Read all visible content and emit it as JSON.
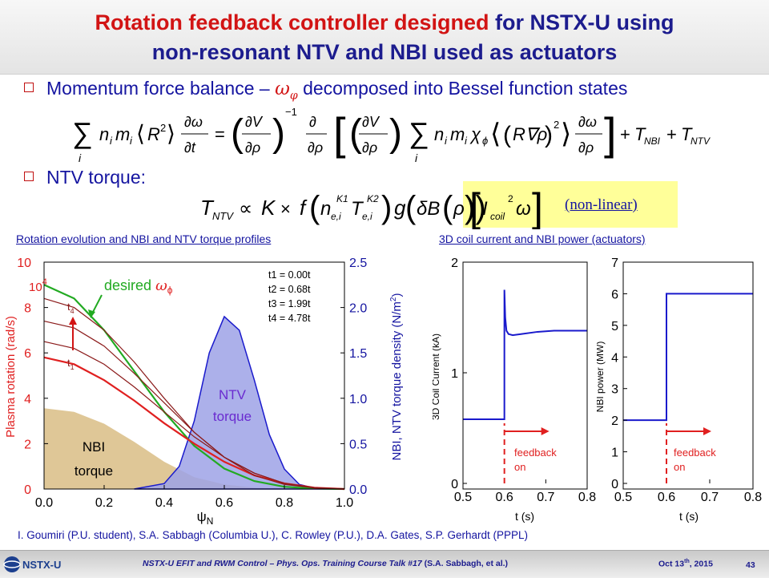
{
  "slide": {
    "title_red": "Rotation feedback controller designed",
    "title_blue": "for NSTX-U using",
    "title_line2": "non-resonant NTV and NBI used as actuators",
    "bullet1_pre": "Momentum force balance –",
    "bullet1_post": "decomposed into Bessel function states",
    "bullet2": "NTV torque:",
    "nonlinear": "(non-linear)",
    "left_section_title": "Rotation evolution and NBI and NTV torque profiles",
    "right_section_title": "3D coil current and NBI power (actuators)",
    "authors": "I. Goumiri (P.U. student), S.A. Sabbagh (Columbia U.), C. Rowley (P.U.), D.A. Gates, S.P. Gerhardt (PPPL)",
    "footer_talk": "NSTX-U EFIT and RWM Control – Phys. Ops. Training Course Talk #17",
    "footer_authors": "(S.A. Sabbagh, et al.)",
    "footer_date": "Oct 13",
    "footer_date_sup": "th",
    "footer_year": ", 2015",
    "page_number": "43",
    "logo_text": "NSTX-U"
  },
  "chart_data": [
    {
      "type": "line",
      "xlabel": "ψN",
      "ylabel": "Plasma rotation (rad/s)",
      "ylabel_scale": "10^4",
      "y2label": "NBI, NTV torque density (N/m^2)",
      "xlim": [
        0.0,
        1.0
      ],
      "ylim": [
        0,
        10
      ],
      "y2lim": [
        0.0,
        2.5
      ],
      "x_ticks": [
        "0.0",
        "0.2",
        "0.4",
        "0.6",
        "0.8",
        "1.0"
      ],
      "y_ticks": [
        "0",
        "2",
        "4",
        "6",
        "8",
        "10"
      ],
      "y2_ticks": [
        "0.0",
        "0.5",
        "1.0",
        "1.5",
        "2.0",
        "2.5"
      ],
      "annotations": {
        "desired": "desired",
        "t1": "t1",
        "t4": "t4",
        "ntv_label_1": "NTV",
        "ntv_label_2": "torque",
        "nbi_label_1": "NBI",
        "nbi_label_2": "torque"
      },
      "time_legend": [
        "t1 = 0.00t",
        "t2 = 0.68t",
        "t3 = 1.99t",
        "t4 = 4.78t"
      ],
      "series": [
        {
          "name": "desired",
          "color": "#22aa22",
          "x": [
            0,
            0.1,
            0.2,
            0.3,
            0.4,
            0.5,
            0.6,
            0.7,
            0.8,
            0.9,
            1.0
          ],
          "values": [
            9.0,
            8.4,
            7.0,
            5.2,
            3.4,
            1.9,
            0.9,
            0.35,
            0.1,
            0.02,
            0
          ]
        },
        {
          "name": "t1",
          "color": "#e02020",
          "x": [
            0,
            0.1,
            0.2,
            0.3,
            0.4,
            0.5,
            0.6,
            0.7,
            0.8,
            0.9,
            1.0
          ],
          "values": [
            5.8,
            5.5,
            4.8,
            3.9,
            2.9,
            2.0,
            1.2,
            0.6,
            0.25,
            0.06,
            0
          ]
        },
        {
          "name": "t2",
          "color": "#8b1a1a",
          "x": [
            0,
            0.1,
            0.2,
            0.3,
            0.4,
            0.5,
            0.6,
            0.7,
            0.8,
            0.9,
            1.0
          ],
          "values": [
            6.5,
            6.2,
            5.5,
            4.5,
            3.4,
            2.3,
            1.4,
            0.7,
            0.25,
            0.06,
            0
          ]
        },
        {
          "name": "t3",
          "color": "#8b1a1a",
          "x": [
            0,
            0.1,
            0.2,
            0.3,
            0.4,
            0.5,
            0.6,
            0.7,
            0.8,
            0.9,
            1.0
          ],
          "values": [
            7.4,
            7.1,
            6.3,
            5.1,
            3.8,
            2.5,
            1.4,
            0.7,
            0.25,
            0.06,
            0
          ]
        },
        {
          "name": "t4",
          "color": "#8b1a1a",
          "x": [
            0,
            0.1,
            0.2,
            0.3,
            0.4,
            0.5,
            0.6,
            0.7,
            0.8,
            0.9,
            1.0
          ],
          "values": [
            8.4,
            8.0,
            7.0,
            5.6,
            4.0,
            2.5,
            1.4,
            0.6,
            0.2,
            0.05,
            0
          ]
        }
      ],
      "nbi_torque": {
        "color": "#d9bd85",
        "x": [
          0,
          0.1,
          0.2,
          0.3,
          0.4,
          0.5,
          0.6,
          0.7,
          0.8,
          0.9,
          1.0
        ],
        "values": [
          0.89,
          0.85,
          0.72,
          0.52,
          0.3,
          0.13,
          0.05,
          0.015,
          0.004,
          0.001,
          0
        ]
      },
      "ntv_torque": {
        "color": "#9ea2e6",
        "x": [
          0.3,
          0.4,
          0.45,
          0.5,
          0.55,
          0.6,
          0.65,
          0.7,
          0.75,
          0.8,
          0.85,
          0.9,
          1.0
        ],
        "values": [
          0.0,
          0.06,
          0.25,
          0.75,
          1.5,
          1.9,
          1.75,
          1.2,
          0.6,
          0.22,
          0.05,
          0.01,
          0
        ]
      }
    },
    {
      "type": "line",
      "xlabel": "t (s)",
      "ylabel": "3D Coil Current (kA)",
      "xlim": [
        0.5,
        0.8
      ],
      "ylim": [
        0,
        2
      ],
      "x_ticks": [
        "0.5",
        "0.6",
        "0.7",
        "0.8"
      ],
      "y_ticks": [
        "0",
        "1",
        "2"
      ],
      "annotation": [
        "feedback",
        "on"
      ],
      "feedback_time": 0.6,
      "series": [
        {
          "color": "#1a1acc",
          "x": [
            0.5,
            0.6,
            0.6,
            0.602,
            0.605,
            0.61,
            0.62,
            0.64,
            0.68,
            0.72,
            0.76,
            0.8
          ],
          "values": [
            0.58,
            0.58,
            1.75,
            1.5,
            1.38,
            1.35,
            1.34,
            1.35,
            1.37,
            1.38,
            1.38,
            1.38
          ]
        }
      ]
    },
    {
      "type": "line",
      "xlabel": "t (s)",
      "ylabel": "NBI power (MW)",
      "xlim": [
        0.5,
        0.8
      ],
      "ylim": [
        0,
        7
      ],
      "x_ticks": [
        "0.5",
        "0.6",
        "0.7",
        "0.8"
      ],
      "y_ticks": [
        "0",
        "1",
        "2",
        "3",
        "4",
        "5",
        "6",
        "7"
      ],
      "annotation": [
        "feedback",
        "on"
      ],
      "feedback_time": 0.6,
      "series": [
        {
          "color": "#1a1acc",
          "x": [
            0.5,
            0.6,
            0.6,
            0.8
          ],
          "values": [
            2,
            2,
            6,
            6
          ]
        }
      ]
    }
  ]
}
